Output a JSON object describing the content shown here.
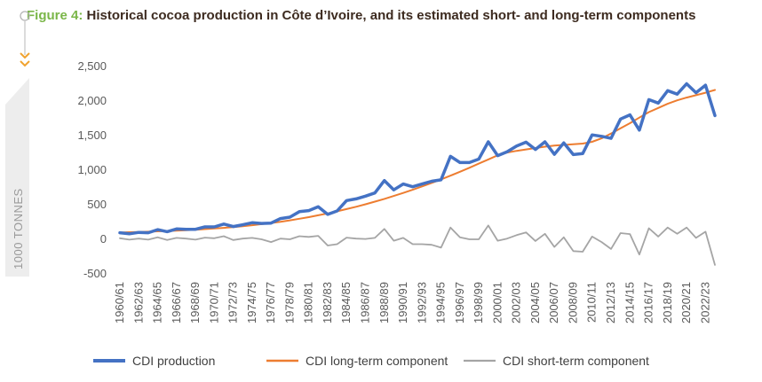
{
  "figure": {
    "label": "Figure 4:",
    "title": "Historical cocoa production in Côte d’Ivoire, and its estimated short- and long-term components",
    "side_label": "1000 TONNES",
    "accent_color": "#7ab648",
    "title_color": "#3d2b20"
  },
  "chart_data": {
    "type": "line",
    "title": "Historical cocoa production in Côte d’Ivoire, and its estimated short- and long-term components",
    "xlabel": "",
    "ylabel": "1000 TONNES",
    "ylim": [
      -500,
      2500
    ],
    "yticks": [
      -500,
      0,
      500,
      1000,
      1500,
      2000,
      2500
    ],
    "ytick_labels": [
      "-500",
      "0",
      "500",
      "1,000",
      "1,500",
      "2,000",
      "2,500"
    ],
    "grid": false,
    "legend": "bottom",
    "x_tick_labels": [
      "1960/61",
      "1962/63",
      "1964/65",
      "1966/67",
      "1968/69",
      "1970/71",
      "1972/73",
      "1974/75",
      "1976/77",
      "1978/79",
      "1980/81",
      "1982/83",
      "1984/85",
      "1986/87",
      "1988/89",
      "1990/91",
      "1992/93",
      "1994/95",
      "1996/97",
      "1998/99",
      "2000/01",
      "2002/03",
      "2004/05",
      "2006/07",
      "2008/09",
      "2010/11",
      "2012/13",
      "2014/15",
      "2016/17",
      "2018/19",
      "2020/21",
      "2022/23"
    ],
    "x": [
      "1960/61",
      "1961/62",
      "1962/63",
      "1963/64",
      "1964/65",
      "1965/66",
      "1966/67",
      "1967/68",
      "1968/69",
      "1969/70",
      "1970/71",
      "1971/72",
      "1972/73",
      "1973/74",
      "1974/75",
      "1975/76",
      "1976/77",
      "1977/78",
      "1978/79",
      "1979/80",
      "1980/81",
      "1981/82",
      "1982/83",
      "1983/84",
      "1984/85",
      "1985/86",
      "1986/87",
      "1987/88",
      "1988/89",
      "1989/90",
      "1990/91",
      "1991/92",
      "1992/93",
      "1993/94",
      "1994/95",
      "1995/96",
      "1996/97",
      "1997/98",
      "1998/99",
      "1999/00",
      "2000/01",
      "2001/02",
      "2002/03",
      "2003/04",
      "2004/05",
      "2005/06",
      "2006/07",
      "2007/08",
      "2008/09",
      "2009/10",
      "2010/11",
      "2011/12",
      "2012/13",
      "2013/14",
      "2014/15",
      "2015/16",
      "2016/17",
      "2017/18",
      "2018/19",
      "2019/20",
      "2020/21",
      "2021/22",
      "2022/23",
      "2023/24"
    ],
    "series": [
      {
        "name": "CDI production",
        "color": "#4472c4",
        "values": [
          95,
          80,
          100,
          95,
          140,
          110,
          150,
          145,
          145,
          180,
          180,
          220,
          185,
          210,
          240,
          230,
          235,
          300,
          320,
          400,
          415,
          470,
          360,
          410,
          560,
          585,
          625,
          670,
          850,
          715,
          800,
          760,
          800,
          840,
          860,
          1200,
          1110,
          1110,
          1160,
          1410,
          1210,
          1265,
          1350,
          1405,
          1300,
          1410,
          1230,
          1395,
          1225,
          1240,
          1510,
          1490,
          1460,
          1740,
          1800,
          1580,
          2020,
          1970,
          2150,
          2100,
          2250,
          2120,
          2230,
          1790
        ]
      },
      {
        "name": "CDI long-term component",
        "color": "#ed7d31",
        "values": [
          98,
          102,
          106,
          110,
          115,
          120,
          126,
          132,
          139,
          147,
          156,
          166,
          177,
          190,
          204,
          219,
          236,
          254,
          275,
          297,
          321,
          347,
          375,
          405,
          437,
          471,
          507,
          545,
          585,
          627,
          671,
          717,
          765,
          815,
          867,
          921,
          977,
          1035,
          1095,
          1155,
          1215,
          1255,
          1280,
          1300,
          1320,
          1340,
          1355,
          1365,
          1375,
          1385,
          1410,
          1460,
          1530,
          1605,
          1680,
          1760,
          1840,
          1900,
          1960,
          2010,
          2050,
          2085,
          2120,
          2160
        ]
      },
      {
        "name": "CDI short-term component",
        "color": "#a5a5a5",
        "values": [
          15,
          -5,
          10,
          -5,
          30,
          -10,
          20,
          10,
          -5,
          25,
          15,
          45,
          -10,
          10,
          20,
          0,
          -40,
          10,
          0,
          45,
          35,
          50,
          -90,
          -70,
          25,
          10,
          5,
          20,
          150,
          -20,
          20,
          -70,
          -70,
          -80,
          -120,
          170,
          30,
          0,
          0,
          200,
          -20,
          10,
          60,
          100,
          -25,
          80,
          -110,
          30,
          -170,
          -180,
          40,
          -40,
          -140,
          90,
          75,
          -220,
          160,
          40,
          170,
          80,
          170,
          20,
          110,
          -370
        ]
      }
    ]
  }
}
